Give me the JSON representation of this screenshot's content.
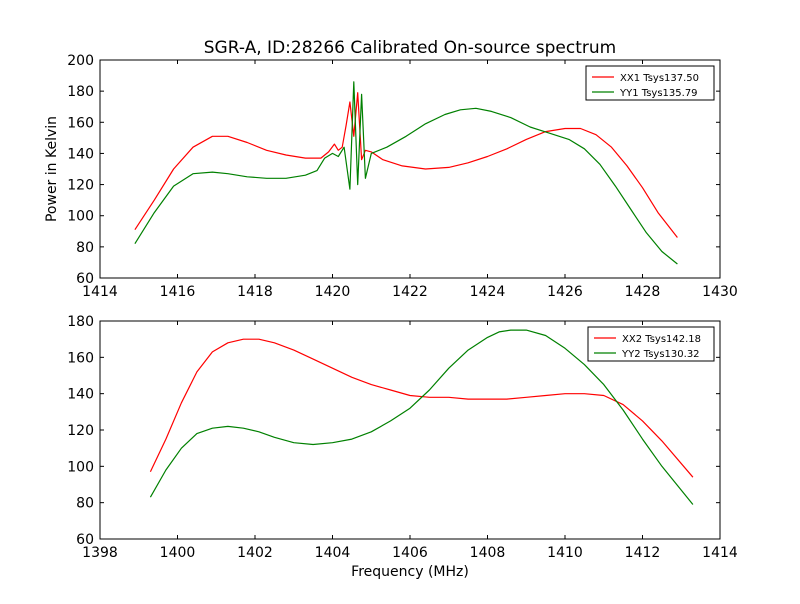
{
  "title": "SGR-A, ID:28266 Calibrated On-source spectrum",
  "chart_data": [
    {
      "type": "line",
      "title": "SGR-A, ID:28266 Calibrated On-source spectrum",
      "xlabel": "",
      "ylabel": "Power in Kelvin",
      "xlim": [
        1414,
        1430
      ],
      "ylim": [
        60,
        200
      ],
      "xticks": [
        "1414",
        "1416",
        "1418",
        "1420",
        "1422",
        "1424",
        "1426",
        "1428",
        "1430"
      ],
      "yticks": [
        "60",
        "80",
        "100",
        "120",
        "140",
        "160",
        "180",
        "200"
      ],
      "legend_position": "top-right",
      "grid": false,
      "series": [
        {
          "name": "XX1 Tsys137.50",
          "color": "#ff0000",
          "x": [
            1414.9,
            1415.4,
            1415.9,
            1416.4,
            1416.9,
            1417.3,
            1417.8,
            1418.3,
            1418.8,
            1419.3,
            1419.7,
            1419.9,
            1420.05,
            1420.15,
            1420.25,
            1420.35,
            1420.45,
            1420.55,
            1420.65,
            1420.75,
            1420.85,
            1421.0,
            1421.3,
            1421.8,
            1422.4,
            1423.0,
            1423.5,
            1424.0,
            1424.5,
            1425.0,
            1425.5,
            1426.0,
            1426.4,
            1426.8,
            1427.2,
            1427.6,
            1428.0,
            1428.4,
            1428.9
          ],
          "y": [
            91,
            110,
            130,
            144,
            151,
            151,
            147,
            142,
            139,
            137,
            137,
            141,
            146,
            142,
            144,
            158,
            173,
            151,
            179,
            136,
            142,
            141,
            136,
            132,
            130,
            131,
            134,
            138,
            143,
            149,
            154,
            156,
            156,
            152,
            144,
            132,
            118,
            102,
            86
          ]
        },
        {
          "name": "YY1 Tsys135.79",
          "color": "#008000",
          "x": [
            1414.9,
            1415.4,
            1415.9,
            1416.4,
            1416.9,
            1417.3,
            1417.8,
            1418.3,
            1418.8,
            1419.3,
            1419.6,
            1419.8,
            1420.0,
            1420.15,
            1420.3,
            1420.45,
            1420.55,
            1420.65,
            1420.75,
            1420.85,
            1421.0,
            1421.4,
            1421.9,
            1422.4,
            1422.9,
            1423.3,
            1423.7,
            1424.1,
            1424.6,
            1425.1,
            1425.6,
            1426.1,
            1426.5,
            1426.9,
            1427.3,
            1427.7,
            1428.1,
            1428.5,
            1428.9
          ],
          "y": [
            82,
            102,
            119,
            127,
            128,
            127,
            125,
            124,
            124,
            126,
            129,
            137,
            140,
            138,
            144,
            117,
            186,
            120,
            178,
            124,
            140,
            144,
            151,
            159,
            165,
            168,
            169,
            167,
            163,
            157,
            153,
            149,
            143,
            133,
            119,
            104,
            89,
            77,
            69
          ]
        }
      ]
    },
    {
      "type": "line",
      "title": "",
      "xlabel": "Frequency (MHz)",
      "ylabel": "",
      "xlim": [
        1398,
        1414
      ],
      "ylim": [
        60,
        180
      ],
      "xticks": [
        "1398",
        "1400",
        "1402",
        "1404",
        "1406",
        "1408",
        "1410",
        "1412",
        "1414"
      ],
      "yticks": [
        "60",
        "80",
        "100",
        "120",
        "140",
        "160",
        "180"
      ],
      "legend_position": "top-right",
      "grid": false,
      "series": [
        {
          "name": "XX2 Tsys142.18",
          "color": "#ff0000",
          "x": [
            1399.3,
            1399.7,
            1400.1,
            1400.5,
            1400.9,
            1401.3,
            1401.7,
            1402.1,
            1402.5,
            1403.0,
            1403.5,
            1404.0,
            1404.5,
            1405.0,
            1405.5,
            1406.0,
            1406.5,
            1407.0,
            1407.5,
            1408.0,
            1408.5,
            1409.0,
            1409.5,
            1410.0,
            1410.5,
            1411.0,
            1411.5,
            1412.0,
            1412.5,
            1413.3
          ],
          "y": [
            97,
            115,
            135,
            152,
            163,
            168,
            170,
            170,
            168,
            164,
            159,
            154,
            149,
            145,
            142,
            139,
            138,
            138,
            137,
            137,
            137,
            138,
            139,
            140,
            140,
            139,
            134,
            125,
            114,
            94
          ]
        },
        {
          "name": "YY2 Tsys130.32",
          "color": "#008000",
          "x": [
            1399.3,
            1399.7,
            1400.1,
            1400.5,
            1400.9,
            1401.3,
            1401.7,
            1402.1,
            1402.5,
            1403.0,
            1403.5,
            1404.0,
            1404.5,
            1405.0,
            1405.5,
            1406.0,
            1406.5,
            1407.0,
            1407.5,
            1408.0,
            1408.3,
            1408.6,
            1409.0,
            1409.5,
            1410.0,
            1410.5,
            1411.0,
            1411.5,
            1412.0,
            1412.5,
            1413.3
          ],
          "y": [
            83,
            98,
            110,
            118,
            121,
            122,
            121,
            119,
            116,
            113,
            112,
            113,
            115,
            119,
            125,
            132,
            142,
            154,
            164,
            171,
            174,
            175,
            175,
            172,
            165,
            156,
            145,
            131,
            115,
            100,
            79
          ]
        }
      ]
    }
  ]
}
